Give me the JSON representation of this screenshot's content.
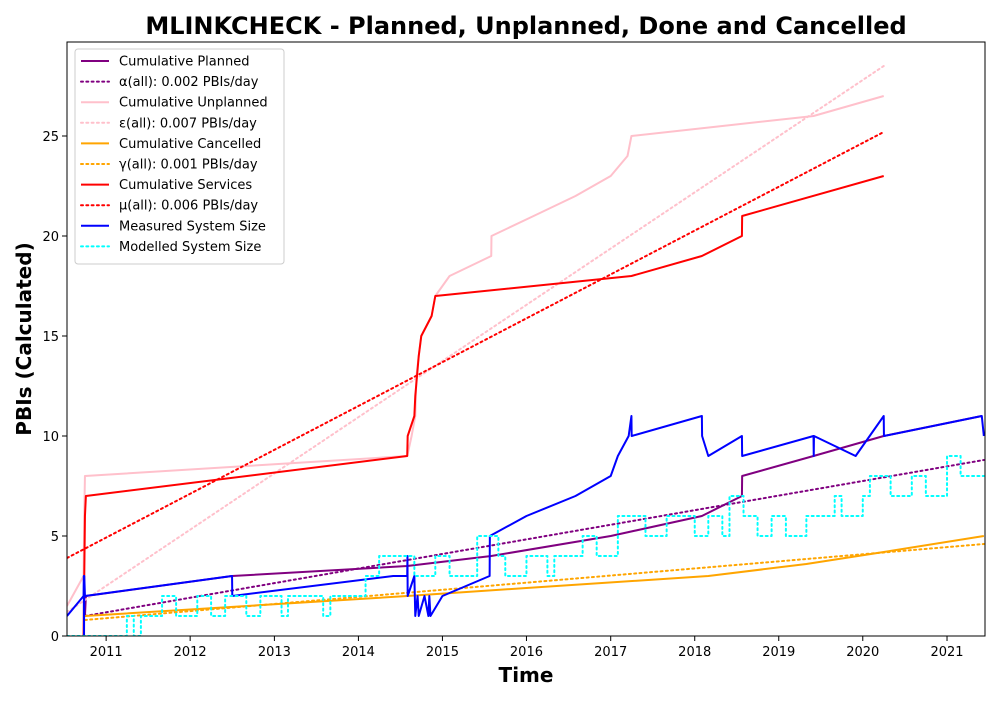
{
  "chart_data": {
    "type": "line",
    "title": "MLINKCHECK - Planned, Unplanned, Done  and Cancelled",
    "xlabel": "Time",
    "ylabel": "PBIs (Calculated)",
    "xlim": [
      "2010-07-15",
      "2021-06-15"
    ],
    "ylim": [
      0,
      29.7
    ],
    "xticks": [
      {
        "label": "2011",
        "date": "2011-01-01"
      },
      {
        "label": "2012",
        "date": "2012-01-01"
      },
      {
        "label": "2013",
        "date": "2013-01-01"
      },
      {
        "label": "2014",
        "date": "2014-01-01"
      },
      {
        "label": "2015",
        "date": "2015-01-01"
      },
      {
        "label": "2016",
        "date": "2016-01-01"
      },
      {
        "label": "2017",
        "date": "2017-01-01"
      },
      {
        "label": "2018",
        "date": "2018-01-01"
      },
      {
        "label": "2019",
        "date": "2019-01-01"
      },
      {
        "label": "2020",
        "date": "2020-01-01"
      },
      {
        "label": "2021",
        "date": "2021-01-01"
      }
    ],
    "yticks": [
      0,
      5,
      10,
      15,
      20,
      25
    ],
    "grid": false,
    "legend_position": "top-left",
    "series": [
      {
        "name": "Cumulative Planned",
        "color": "#800080",
        "style": "solid",
        "points": [
          [
            "2010-10-01",
            1
          ],
          [
            "2010-10-05",
            2
          ],
          [
            "2012-07-01",
            3
          ],
          [
            "2014-08-01",
            3.5
          ],
          [
            "2015-08-01",
            4
          ],
          [
            "2017-01-01",
            5
          ],
          [
            "2018-02-01",
            6
          ],
          [
            "2018-07-25",
            7
          ],
          [
            "2018-07-26",
            8
          ],
          [
            "2019-06-01",
            9
          ],
          [
            "2020-04-01",
            10
          ],
          [
            "2021-06-01",
            11
          ]
        ]
      },
      {
        "name": "α(all): 0.002 PBIs/day",
        "color": "#800080",
        "style": "dotted",
        "points": [
          [
            "2010-10-01",
            1.0
          ],
          [
            "2021-06-10",
            8.8
          ]
        ]
      },
      {
        "name": "Cumulative Unplanned",
        "color": "#ffc0cb",
        "style": "solid",
        "points": [
          [
            "2010-07-15",
            1.5
          ],
          [
            "2010-09-25",
            3
          ],
          [
            "2010-09-28",
            6
          ],
          [
            "2010-10-01",
            8
          ],
          [
            "2014-08-01",
            9
          ],
          [
            "2014-08-20",
            10
          ],
          [
            "2014-09-05",
            11
          ],
          [
            "2014-09-10",
            13
          ],
          [
            "2014-09-20",
            14
          ],
          [
            "2014-10-01",
            15
          ],
          [
            "2014-11-15",
            16
          ],
          [
            "2014-12-01",
            17
          ],
          [
            "2015-02-01",
            18
          ],
          [
            "2015-08-01",
            19
          ],
          [
            "2015-08-02",
            20
          ],
          [
            "2016-02-01",
            21
          ],
          [
            "2016-08-01",
            22
          ],
          [
            "2017-01-01",
            23
          ],
          [
            "2017-03-15",
            24
          ],
          [
            "2017-04-01",
            25
          ],
          [
            "2019-06-01",
            26
          ],
          [
            "2020-04-01",
            27
          ]
        ]
      },
      {
        "name": "ε(all): 0.007 PBIs/day",
        "color": "#ffc0cb",
        "style": "dotted",
        "points": [
          [
            "2010-07-15",
            1.2
          ],
          [
            "2020-04-01",
            28.5
          ]
        ]
      },
      {
        "name": "Cumulative Cancelled",
        "color": "#ffa500",
        "style": "solid",
        "points": [
          [
            "2010-10-01",
            1
          ],
          [
            "2014-08-01",
            2
          ],
          [
            "2016-01-01",
            2.4
          ],
          [
            "2018-03-01",
            3
          ],
          [
            "2019-05-01",
            3.6
          ],
          [
            "2020-04-01",
            4.2
          ],
          [
            "2021-06-10",
            5
          ]
        ]
      },
      {
        "name": "γ(all): 0.001 PBIs/day",
        "color": "#ffa500",
        "style": "dotted",
        "points": [
          [
            "2010-10-01",
            0.8
          ],
          [
            "2021-06-10",
            4.6
          ]
        ]
      },
      {
        "name": "Cumulative Services",
        "color": "#ff0000",
        "style": "solid",
        "points": [
          [
            "2010-09-25",
            0
          ],
          [
            "2010-09-28",
            3
          ],
          [
            "2010-10-01",
            6
          ],
          [
            "2010-10-05",
            7
          ],
          [
            "2014-08-01",
            9
          ],
          [
            "2014-08-03",
            10
          ],
          [
            "2014-09-01",
            11
          ],
          [
            "2014-09-05",
            12
          ],
          [
            "2014-09-20",
            14
          ],
          [
            "2014-10-01",
            15
          ],
          [
            "2014-11-15",
            16
          ],
          [
            "2014-12-01",
            17
          ],
          [
            "2017-04-01",
            18
          ],
          [
            "2018-02-01",
            19
          ],
          [
            "2018-07-25",
            20
          ],
          [
            "2018-07-26",
            21
          ],
          [
            "2020-04-01",
            23
          ]
        ]
      },
      {
        "name": "μ(all): 0.006 PBIs/day",
        "color": "#ff0000",
        "style": "dotted",
        "points": [
          [
            "2010-07-15",
            3.9
          ],
          [
            "2020-04-01",
            25.2
          ]
        ]
      },
      {
        "name": "Measured System Size",
        "color": "#0000ff",
        "style": "solid",
        "points": [
          [
            "2010-07-15",
            1
          ],
          [
            "2010-09-25",
            2
          ],
          [
            "2010-09-26",
            3
          ],
          [
            "2010-09-27",
            0
          ],
          [
            "2010-09-28",
            3
          ],
          [
            "2010-10-01",
            2
          ],
          [
            "2012-07-01",
            3
          ],
          [
            "2012-07-02",
            2
          ],
          [
            "2014-06-01",
            3
          ],
          [
            "2014-08-01",
            3
          ],
          [
            "2014-08-02",
            4
          ],
          [
            "2014-08-03",
            2
          ],
          [
            "2014-09-01",
            3
          ],
          [
            "2014-09-05",
            1
          ],
          [
            "2014-09-15",
            2
          ],
          [
            "2014-09-20",
            1
          ],
          [
            "2014-10-15",
            2
          ],
          [
            "2014-11-01",
            1
          ],
          [
            "2014-11-05",
            2
          ],
          [
            "2014-11-10",
            1
          ],
          [
            "2015-01-01",
            2
          ],
          [
            "2015-07-25",
            3
          ],
          [
            "2015-07-26",
            5
          ],
          [
            "2016-01-01",
            6
          ],
          [
            "2016-08-01",
            7
          ],
          [
            "2017-01-01",
            8
          ],
          [
            "2017-02-01",
            9
          ],
          [
            "2017-03-20",
            10
          ],
          [
            "2017-04-01",
            11
          ],
          [
            "2017-04-02",
            10
          ],
          [
            "2018-02-01",
            11
          ],
          [
            "2018-02-02",
            10
          ],
          [
            "2018-03-01",
            9
          ],
          [
            "2018-07-25",
            10
          ],
          [
            "2018-07-26",
            9
          ],
          [
            "2019-06-01",
            10
          ],
          [
            "2019-06-02",
            9
          ],
          [
            "2019-06-03",
            10
          ],
          [
            "2019-12-01",
            9
          ],
          [
            "2020-04-01",
            11
          ],
          [
            "2020-04-02",
            10
          ],
          [
            "2021-06-01",
            11
          ],
          [
            "2021-06-10",
            10
          ]
        ]
      },
      {
        "name": "Modelled System Size",
        "color": "#00ffff",
        "style": "dotted",
        "points": [
          [
            "2010-07-15",
            0
          ],
          [
            "2011-04-01",
            0
          ],
          [
            "2011-04-01",
            1
          ],
          [
            "2011-05-01",
            1
          ],
          [
            "2011-05-01",
            0
          ],
          [
            "2011-06-01",
            0
          ],
          [
            "2011-06-01",
            1
          ],
          [
            "2011-09-01",
            1
          ],
          [
            "2011-09-01",
            2
          ],
          [
            "2011-11-01",
            2
          ],
          [
            "2011-11-01",
            1
          ],
          [
            "2012-02-01",
            1
          ],
          [
            "2012-02-01",
            2
          ],
          [
            "2012-04-01",
            2
          ],
          [
            "2012-04-01",
            1
          ],
          [
            "2012-06-01",
            1
          ],
          [
            "2012-06-01",
            2
          ],
          [
            "2012-09-01",
            2
          ],
          [
            "2012-09-01",
            1
          ],
          [
            "2012-11-01",
            1
          ],
          [
            "2012-11-01",
            2
          ],
          [
            "2013-02-01",
            2
          ],
          [
            "2013-02-01",
            1
          ],
          [
            "2013-03-01",
            1
          ],
          [
            "2013-03-01",
            2
          ],
          [
            "2013-08-01",
            2
          ],
          [
            "2013-08-01",
            1
          ],
          [
            "2013-09-01",
            1
          ],
          [
            "2013-09-01",
            2
          ],
          [
            "2014-02-01",
            2
          ],
          [
            "2014-02-01",
            3
          ],
          [
            "2014-04-01",
            3
          ],
          [
            "2014-04-01",
            4
          ],
          [
            "2014-09-01",
            4
          ],
          [
            "2014-09-01",
            3
          ],
          [
            "2014-12-01",
            3
          ],
          [
            "2014-12-01",
            4
          ],
          [
            "2015-02-01",
            4
          ],
          [
            "2015-02-01",
            3
          ],
          [
            "2015-06-01",
            3
          ],
          [
            "2015-06-01",
            5
          ],
          [
            "2015-09-01",
            5
          ],
          [
            "2015-09-01",
            4
          ],
          [
            "2015-10-01",
            4
          ],
          [
            "2015-10-01",
            3
          ],
          [
            "2016-01-01",
            3
          ],
          [
            "2016-01-01",
            4
          ],
          [
            "2016-04-01",
            4
          ],
          [
            "2016-04-01",
            3
          ],
          [
            "2016-05-01",
            3
          ],
          [
            "2016-05-01",
            4
          ],
          [
            "2016-09-01",
            4
          ],
          [
            "2016-09-01",
            5
          ],
          [
            "2016-11-01",
            5
          ],
          [
            "2016-11-01",
            4
          ],
          [
            "2017-02-01",
            4
          ],
          [
            "2017-02-01",
            6
          ],
          [
            "2017-06-01",
            6
          ],
          [
            "2017-06-01",
            5
          ],
          [
            "2017-09-01",
            5
          ],
          [
            "2017-09-01",
            6
          ],
          [
            "2018-01-01",
            6
          ],
          [
            "2018-01-01",
            5
          ],
          [
            "2018-03-01",
            5
          ],
          [
            "2018-03-01",
            6
          ],
          [
            "2018-05-01",
            6
          ],
          [
            "2018-05-01",
            5
          ],
          [
            "2018-06-01",
            5
          ],
          [
            "2018-06-01",
            7
          ],
          [
            "2018-08-01",
            7
          ],
          [
            "2018-08-01",
            6
          ],
          [
            "2018-10-01",
            6
          ],
          [
            "2018-10-01",
            5
          ],
          [
            "2018-12-01",
            5
          ],
          [
            "2018-12-01",
            6
          ],
          [
            "2019-02-01",
            6
          ],
          [
            "2019-02-01",
            5
          ],
          [
            "2019-05-01",
            5
          ],
          [
            "2019-05-01",
            6
          ],
          [
            "2019-09-01",
            6
          ],
          [
            "2019-09-01",
            7
          ],
          [
            "2019-10-01",
            7
          ],
          [
            "2019-10-01",
            6
          ],
          [
            "2020-01-01",
            6
          ],
          [
            "2020-01-01",
            7
          ],
          [
            "2020-02-01",
            7
          ],
          [
            "2020-02-01",
            8
          ],
          [
            "2020-05-01",
            8
          ],
          [
            "2020-05-01",
            7
          ],
          [
            "2020-08-01",
            7
          ],
          [
            "2020-08-01",
            8
          ],
          [
            "2020-10-01",
            8
          ],
          [
            "2020-10-01",
            7
          ],
          [
            "2021-01-01",
            7
          ],
          [
            "2021-01-01",
            9
          ],
          [
            "2021-03-01",
            9
          ],
          [
            "2021-03-01",
            8
          ],
          [
            "2021-06-10",
            8
          ]
        ]
      }
    ]
  }
}
